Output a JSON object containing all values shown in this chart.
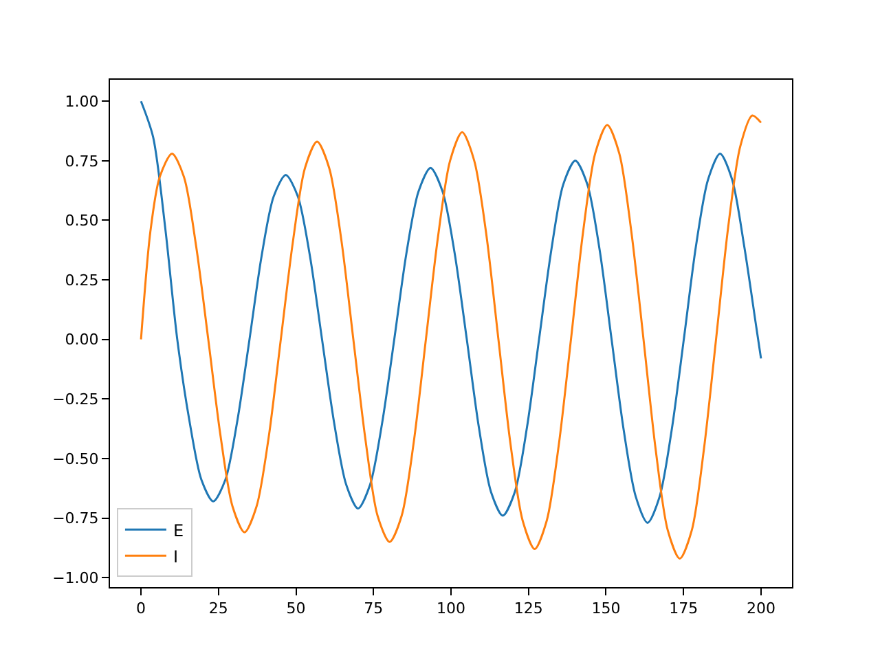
{
  "chart_data": {
    "type": "line",
    "xlim": [
      -10,
      210
    ],
    "ylim": [
      -1.04,
      1.09
    ],
    "xticks": [
      0,
      25,
      50,
      75,
      100,
      125,
      150,
      175,
      200
    ],
    "yticks": [
      {
        "value": -1,
        "label": "−1.00"
      },
      {
        "value": -0.75,
        "label": "−0.75"
      },
      {
        "value": -0.5,
        "label": "−0.50"
      },
      {
        "value": -0.25,
        "label": "−0.25"
      },
      {
        "value": 0,
        "label": "0.00"
      },
      {
        "value": 0.25,
        "label": "0.25"
      },
      {
        "value": 0.5,
        "label": "0.50"
      },
      {
        "value": 0.75,
        "label": "0.75"
      },
      {
        "value": 1,
        "label": "1.00"
      }
    ],
    "legend": "bottom left",
    "marker": "none",
    "line_style": "solid",
    "series": [
      {
        "name": "E",
        "color": "#1f77b4",
        "x": [
          0,
          3.9,
          7.8,
          11.7,
          15.6,
          19.5,
          23.3,
          27.2,
          31.1,
          35,
          38.9,
          42.8,
          46.7,
          50.6,
          54.5,
          58.4,
          62.3,
          66.2,
          70,
          73.9,
          77.8,
          81.7,
          85.6,
          89.5,
          93.4,
          97.3,
          101.2,
          105.1,
          109,
          112.9,
          116.7,
          120.6,
          124.5,
          128.4,
          132.3,
          136.2,
          140.1,
          144,
          147.9,
          151.8,
          155.7,
          159.6,
          163.4,
          167.3,
          171.2,
          175.1,
          179,
          182.9,
          186.8,
          190.7,
          194.6,
          198.5,
          200
        ],
        "values": [
          1,
          0.85,
          0.47,
          0,
          -0.34,
          -0.59,
          -0.68,
          -0.59,
          -0.34,
          0,
          0.35,
          0.6,
          0.69,
          0.6,
          0.35,
          0,
          -0.35,
          -0.61,
          -0.71,
          -0.61,
          -0.35,
          0,
          0.36,
          0.62,
          0.72,
          0.62,
          0.36,
          0,
          -0.37,
          -0.64,
          -0.74,
          -0.64,
          -0.37,
          0,
          0.37,
          0.65,
          0.75,
          0.65,
          0.38,
          0,
          -0.38,
          -0.66,
          -0.77,
          -0.66,
          -0.38,
          0,
          0.39,
          0.67,
          0.78,
          0.67,
          0.39,
          0.05,
          -0.08
        ]
      },
      {
        "name": "I",
        "color": "#ff7f0e",
        "x": [
          0,
          3,
          6,
          10,
          13.9,
          17.8,
          21.7,
          25.6,
          29.5,
          33.4,
          37.3,
          41.2,
          45.1,
          49,
          52.9,
          56.8,
          60.7,
          64.6,
          68.5,
          72.4,
          76.3,
          80.2,
          84.1,
          88,
          91.9,
          95.8,
          99.7,
          103.6,
          107.5,
          111.4,
          115.3,
          119.2,
          123.1,
          127,
          130.9,
          134.8,
          138.7,
          142.6,
          146.5,
          150.4,
          154.3,
          158.2,
          162.1,
          166,
          169.9,
          173.8,
          177.7,
          181.6,
          185.5,
          189.4,
          193.3,
          197.2,
          200
        ],
        "values": [
          0,
          0.45,
          0.68,
          0.78,
          0.68,
          0.39,
          0,
          -0.4,
          -0.7,
          -0.81,
          -0.7,
          -0.41,
          0,
          0.41,
          0.72,
          0.83,
          0.72,
          0.42,
          0,
          -0.42,
          -0.74,
          -0.85,
          -0.74,
          -0.43,
          0,
          0.43,
          0.75,
          0.87,
          0.75,
          0.44,
          0,
          -0.44,
          -0.76,
          -0.88,
          -0.76,
          -0.44,
          0,
          0.45,
          0.78,
          0.9,
          0.78,
          0.45,
          0,
          -0.46,
          -0.8,
          -0.92,
          -0.8,
          -0.46,
          0,
          0.47,
          0.81,
          0.94,
          0.91
        ]
      }
    ]
  }
}
